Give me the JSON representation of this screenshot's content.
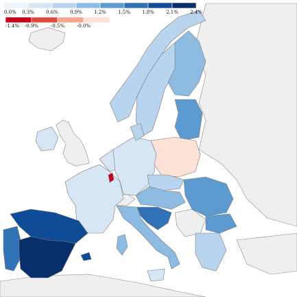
{
  "colors": {
    "sea": "#ffffff",
    "nodata": "#efefef",
    "border": "#7a7a7a",
    "pos_0": "#eef4fb",
    "pos_1": "#d6e6f5",
    "pos_2": "#b8d4ee",
    "pos_3": "#8dbbe2",
    "pos_4": "#5b9bd2",
    "pos_5": "#2f72b5",
    "pos_6": "#0f4c97",
    "pos_7": "#082f6b",
    "neg_0": "#fde2d6",
    "neg_1": "#f7a68a",
    "neg_2": "#e2463a",
    "neg_3": "#c8001a"
  },
  "legend_positive": {
    "ticks": [
      "0.0%",
      "0.3%",
      "0.6%",
      "0.9%",
      "1.2%",
      "1.5%",
      "1.8%",
      "2.1%",
      "2.4%"
    ],
    "color_keys": [
      "pos_0",
      "pos_1",
      "pos_2",
      "pos_3",
      "pos_4",
      "pos_5",
      "pos_6",
      "pos_7"
    ]
  },
  "legend_negative": {
    "ticks": [
      "-1.4%",
      "-0.9%",
      "-0.5%",
      "-0.0%"
    ],
    "color_keys": [
      "neg_3",
      "neg_2",
      "neg_1",
      "neg_0"
    ]
  },
  "regions": [
    {
      "name": "spain-south",
      "color_key": "pos_7"
    },
    {
      "name": "spain-north",
      "color_key": "pos_6"
    },
    {
      "name": "portugal",
      "color_key": "pos_5"
    },
    {
      "name": "balearic",
      "color_key": "pos_6"
    },
    {
      "name": "poland",
      "color_key": "neg_0"
    },
    {
      "name": "luxembourg",
      "color_key": "neg_3"
    },
    {
      "name": "finland",
      "color_key": "pos_3"
    },
    {
      "name": "sweden",
      "color_key": "pos_2"
    },
    {
      "name": "norway",
      "color_key": "pos_2"
    },
    {
      "name": "france",
      "color_key": "pos_1"
    },
    {
      "name": "germany",
      "color_key": "pos_1"
    },
    {
      "name": "italy",
      "color_key": "pos_3"
    },
    {
      "name": "romania",
      "color_key": "pos_4"
    },
    {
      "name": "croatia",
      "color_key": "pos_5"
    },
    {
      "name": "baltics",
      "color_key": "pos_4"
    }
  ]
}
